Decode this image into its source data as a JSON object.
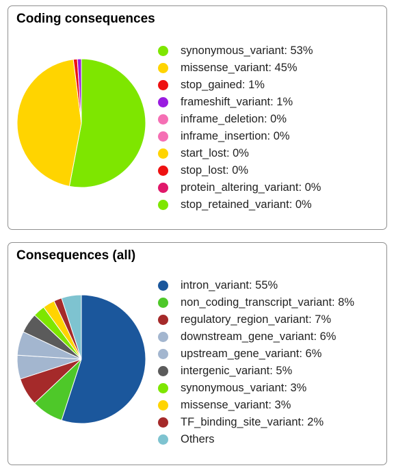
{
  "chart_data": [
    {
      "type": "pie",
      "title": "Coding consequences",
      "legend_position": "right",
      "slices": [
        {
          "name": "synonymous_variant",
          "label": "synonymous_variant: 53%",
          "value": 53,
          "color": "#7ee600"
        },
        {
          "name": "missense_variant",
          "label": "missense_variant: 45%",
          "value": 45,
          "color": "#ffd400"
        },
        {
          "name": "stop_gained",
          "label": "stop_gained: 1%",
          "value": 1,
          "color": "#ee1111"
        },
        {
          "name": "frameshift_variant",
          "label": "frameshift_variant: 1%",
          "value": 1,
          "color": "#9a1ce0"
        },
        {
          "name": "inframe_deletion",
          "label": "inframe_deletion: 0%",
          "value": 0,
          "color": "#f56fb4"
        },
        {
          "name": "inframe_insertion",
          "label": "inframe_insertion: 0%",
          "value": 0,
          "color": "#f56fb4"
        },
        {
          "name": "start_lost",
          "label": "start_lost: 0%",
          "value": 0,
          "color": "#ffd400"
        },
        {
          "name": "stop_lost",
          "label": "stop_lost: 0%",
          "value": 0,
          "color": "#ee1111"
        },
        {
          "name": "protein_altering_variant",
          "label": "protein_altering_variant: 0%",
          "value": 0,
          "color": "#e0186a"
        },
        {
          "name": "stop_retained_variant",
          "label": "stop_retained_variant: 0%",
          "value": 0,
          "color": "#7ee600"
        }
      ]
    },
    {
      "type": "pie",
      "title": "Consequences (all)",
      "legend_position": "right",
      "slices": [
        {
          "name": "intron_variant",
          "label": "intron_variant: 55%",
          "value": 55,
          "color": "#1b579c"
        },
        {
          "name": "non_coding_transcript_variant",
          "label": "non_coding_transcript_variant: 8%",
          "value": 8,
          "color": "#4ec829"
        },
        {
          "name": "regulatory_region_variant",
          "label": "regulatory_region_variant: 7%",
          "value": 7,
          "color": "#a52a2a"
        },
        {
          "name": "downstream_gene_variant",
          "label": "downstream_gene_variant: 6%",
          "value": 6,
          "color": "#a3b6cf"
        },
        {
          "name": "upstream_gene_variant",
          "label": "upstream_gene_variant: 6%",
          "value": 6,
          "color": "#a3b6cf"
        },
        {
          "name": "intergenic_variant",
          "label": "intergenic_variant: 5%",
          "value": 5,
          "color": "#5b5b5b"
        },
        {
          "name": "synonymous_variant",
          "label": "synonymous_variant: 3%",
          "value": 3,
          "color": "#7ee600"
        },
        {
          "name": "missense_variant",
          "label": "missense_variant: 3%",
          "value": 3,
          "color": "#ffd400"
        },
        {
          "name": "TF_binding_site_variant",
          "label": "TF_binding_site_variant: 2%",
          "value": 2,
          "color": "#a52a2a"
        },
        {
          "name": "Others",
          "label": "Others",
          "value": 5,
          "color": "#7ec3d0"
        }
      ]
    }
  ]
}
